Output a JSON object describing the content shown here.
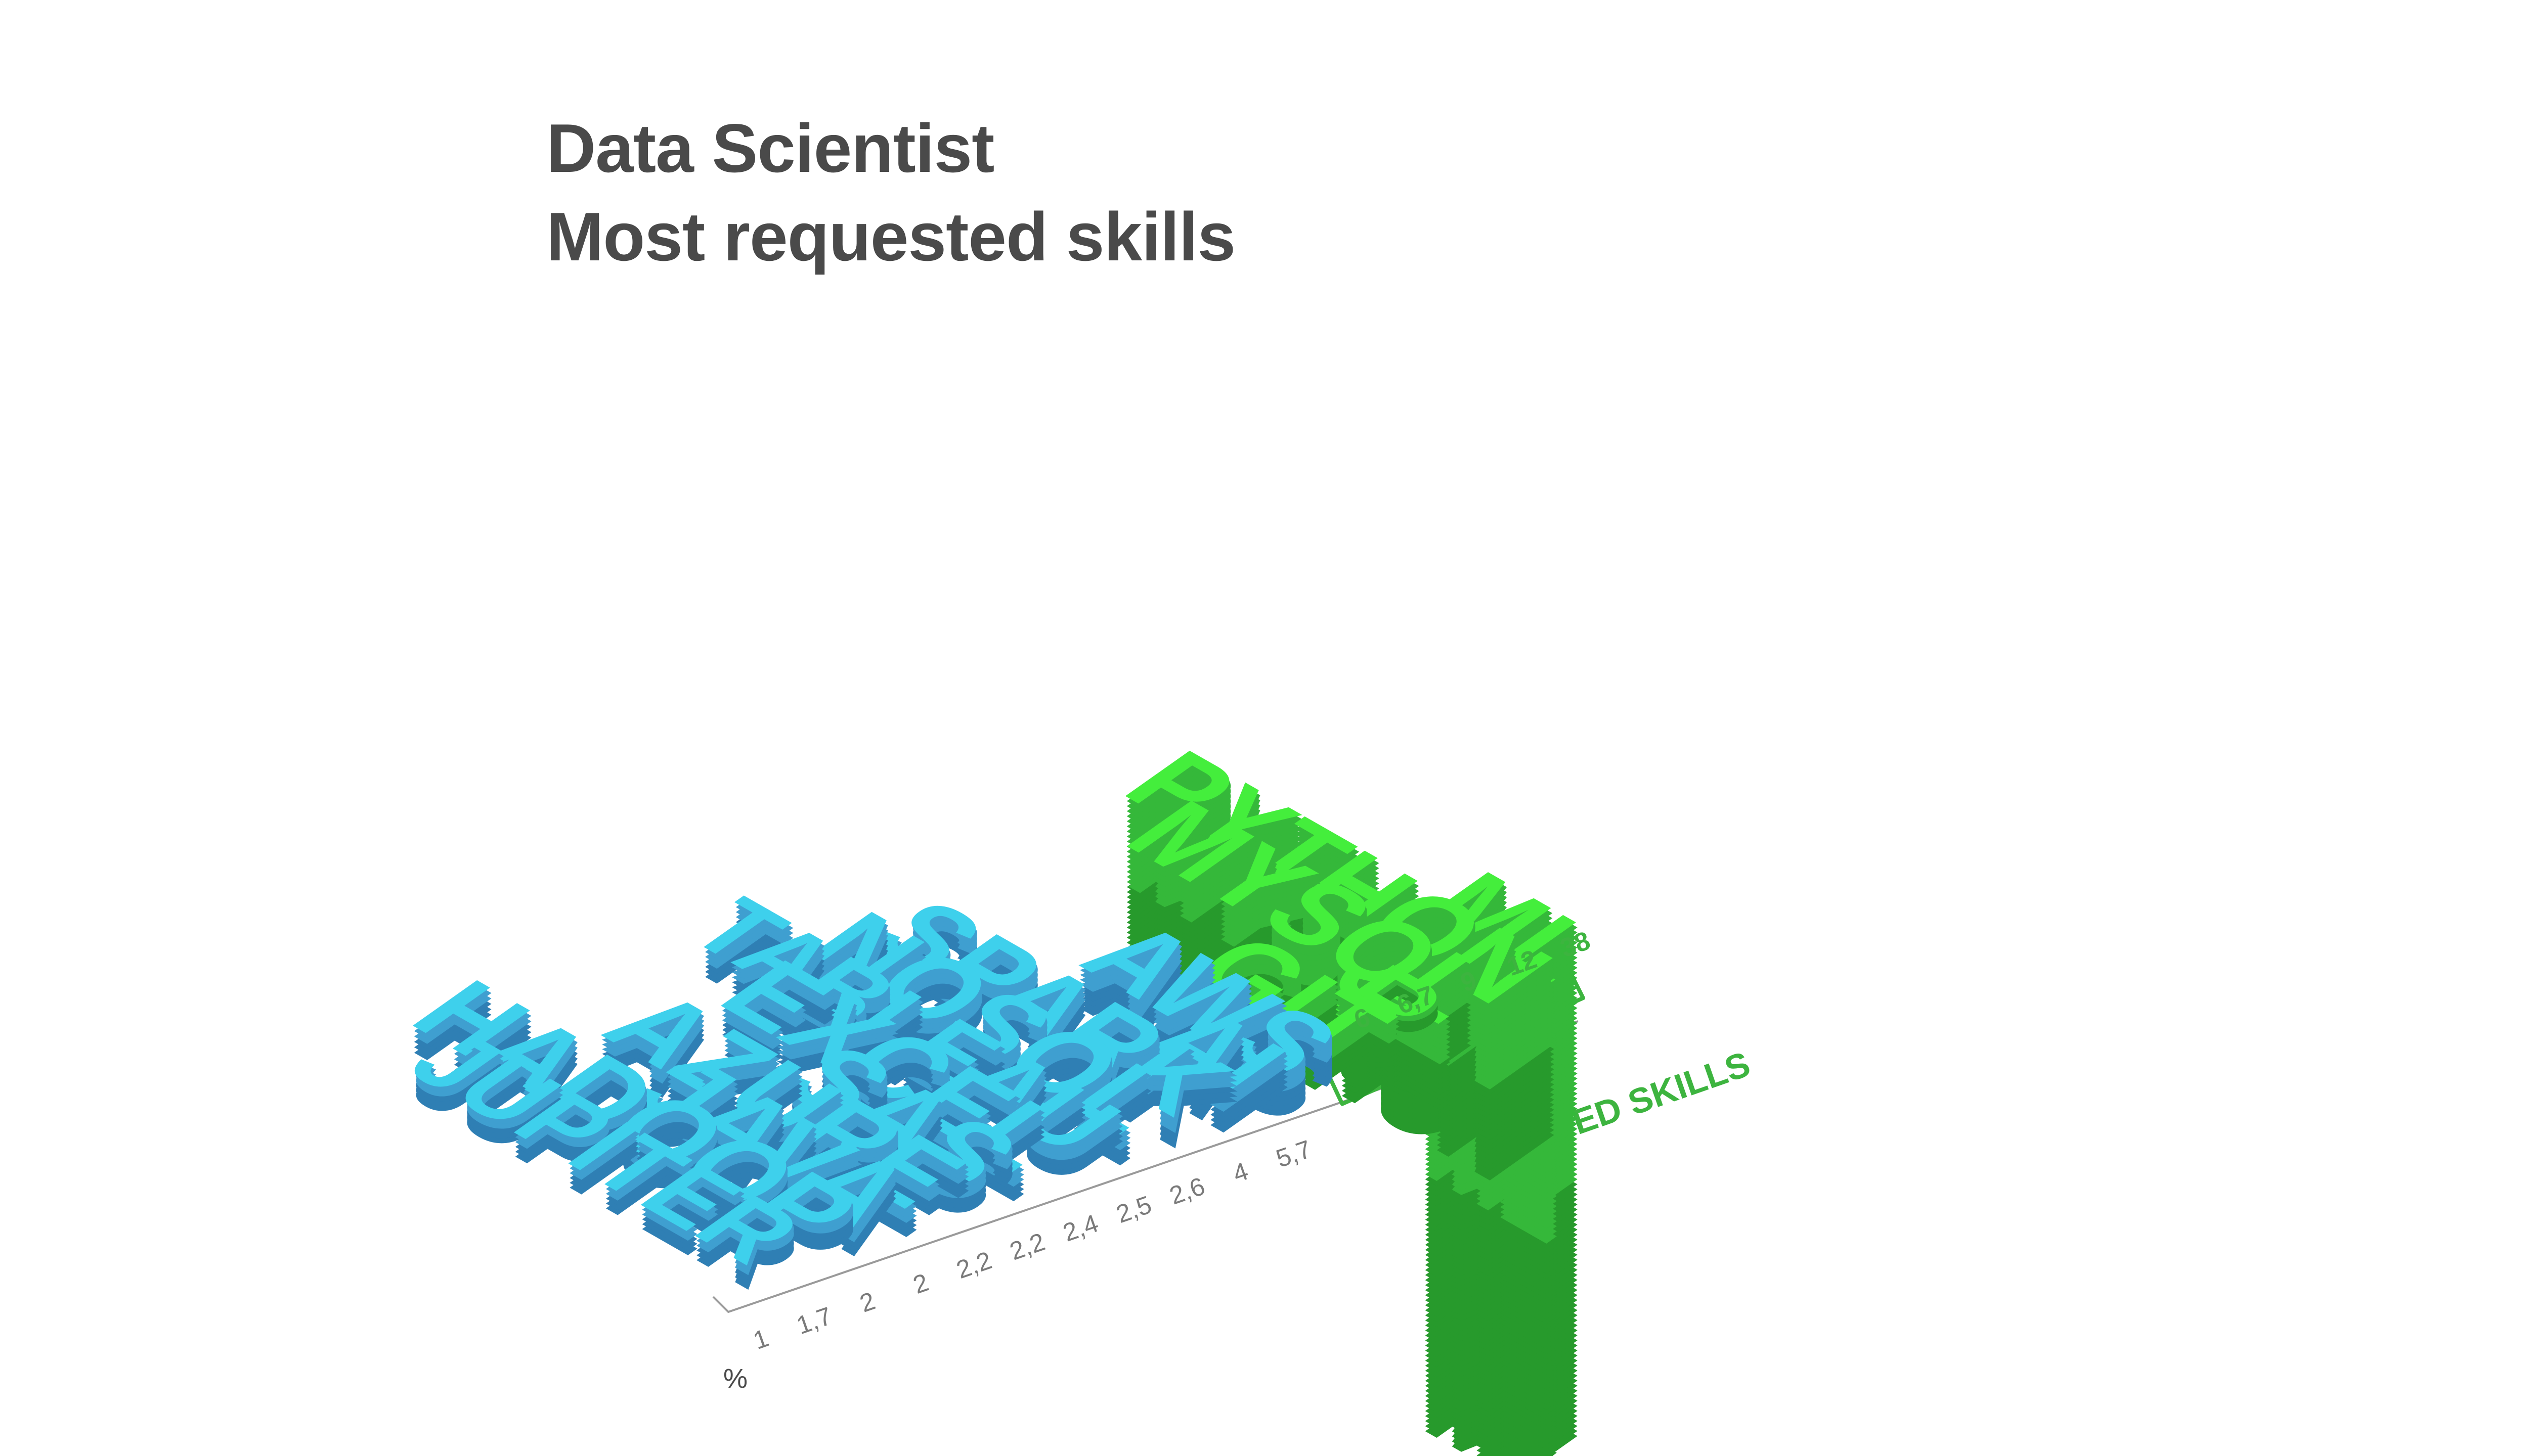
{
  "title_line1": "Data Scientist",
  "title_line2": "Most requested skills",
  "colors": {
    "blue_face": "#3ed0ec",
    "blue_side": "#3f9fd0",
    "blue_dark": "#2f7fb4",
    "green_face": "#44ee3c",
    "green_side": "#35b83a",
    "green_dark": "#279a2c",
    "axis": "#9a9a9a",
    "tick_text": "#7a7a7a",
    "selected_text": "#3db43f",
    "title": "#4a4a4a"
  },
  "chart_data": {
    "type": "bar",
    "title": "Data Scientist Most requested skills",
    "unit_label": "%",
    "categories": [
      "JUPITER",
      "HADOOP",
      "JAVA",
      "AZURE",
      "SAS",
      "EXCEL",
      "TABLEAU",
      "NOSQL",
      "SPARK",
      "AI",
      "AWS",
      "GIT",
      "R",
      "MYSQL",
      "PYTHON",
      "ML"
    ],
    "values": [
      1,
      1.7,
      2,
      2,
      2.2,
      2.2,
      2.4,
      2.5,
      2.6,
      4,
      5.7,
      6,
      6.7,
      9,
      12,
      38
    ],
    "value_labels": [
      "1",
      "1,7",
      "2",
      "2",
      "2,2",
      "2,2",
      "2,4",
      "2,5",
      "2,6",
      "4",
      "5,7",
      "6",
      "6,7",
      "9",
      "12",
      "38"
    ],
    "highlight_group": {
      "label": "SELECTED SKILLS",
      "categories": [
        "GIT",
        "R",
        "MYSQL",
        "PYTHON",
        "ML"
      ]
    }
  }
}
